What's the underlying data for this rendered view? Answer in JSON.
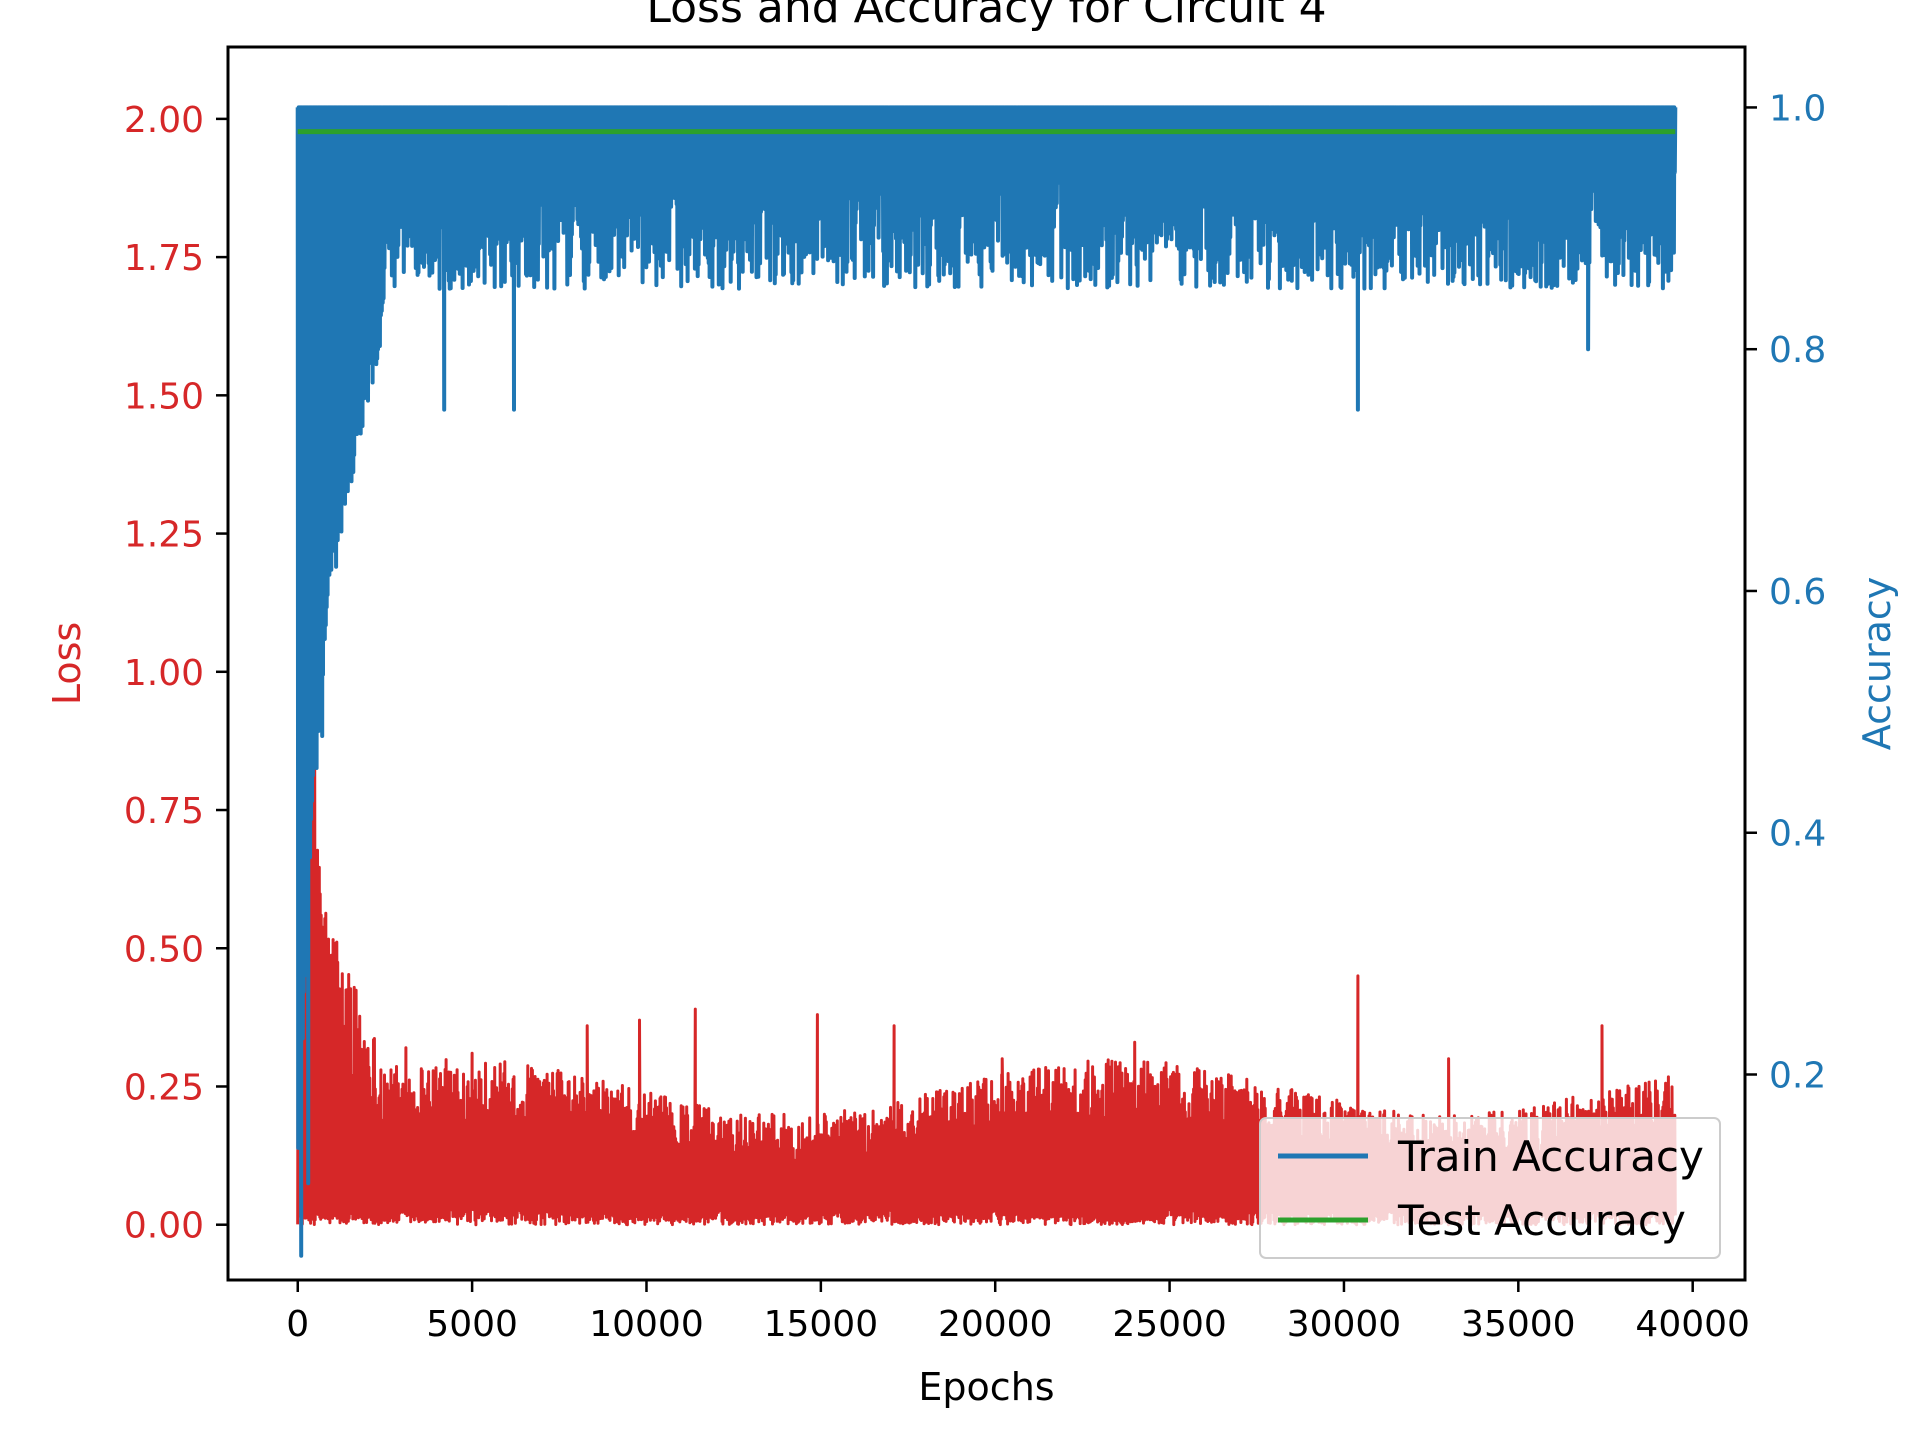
{
  "chart_data": {
    "type": "line",
    "title": "Loss and Accuracy for Circuit 4",
    "xlabel": "Epochs",
    "ylabel_left": "Loss",
    "ylabel_right": "Accuracy",
    "xlim": [
      -2000,
      41500
    ],
    "ylim_left": [
      -0.1,
      2.13
    ],
    "ylim_right": [
      0.03,
      1.05
    ],
    "x_ticks": [
      0,
      5000,
      10000,
      15000,
      20000,
      25000,
      30000,
      35000,
      40000
    ],
    "x_tick_labels": [
      "0",
      "5000",
      "10000",
      "15000",
      "20000",
      "25000",
      "30000",
      "35000",
      "40000"
    ],
    "y_left_ticks": [
      0.0,
      0.25,
      0.5,
      0.75,
      1.0,
      1.25,
      1.5,
      1.75,
      2.0
    ],
    "y_left_tick_labels": [
      "0.00",
      "0.25",
      "0.50",
      "0.75",
      "1.00",
      "1.25",
      "1.50",
      "1.75",
      "2.00"
    ],
    "y_right_ticks": [
      0.2,
      0.4,
      0.6,
      0.8,
      1.0
    ],
    "y_right_tick_labels": [
      "0.2",
      "0.4",
      "0.6",
      "0.8",
      "1.0"
    ],
    "legend": {
      "placement": "lower-right",
      "entries": [
        "Train Accuracy",
        "Test Accuracy"
      ]
    },
    "series": [
      {
        "name": "Loss",
        "axis": "left",
        "color": "#d62728",
        "x_start": 0,
        "x_end": 39500,
        "description_points": [
          [
            0,
            1.0
          ],
          [
            50,
            2.03
          ],
          [
            150,
            1.9
          ],
          [
            300,
            1.3
          ],
          [
            500,
            0.6
          ],
          [
            800,
            0.5
          ],
          [
            1000,
            0.4
          ],
          [
            2000,
            0.3
          ],
          [
            5000,
            0.25
          ],
          [
            40000,
            0.2
          ]
        ],
        "noise_floor": 0.0,
        "envelope_early": 0.38,
        "envelope_late": 0.25,
        "spikes": [
          [
            1500,
            0.38
          ],
          [
            3100,
            0.32
          ],
          [
            5000,
            0.31
          ],
          [
            8300,
            0.36
          ],
          [
            9800,
            0.37
          ],
          [
            11400,
            0.39
          ],
          [
            14900,
            0.38
          ],
          [
            17100,
            0.36
          ],
          [
            20200,
            0.3
          ],
          [
            24000,
            0.33
          ],
          [
            30400,
            0.45
          ],
          [
            33000,
            0.3
          ],
          [
            37400,
            0.36
          ]
        ]
      },
      {
        "name": "Train Accuracy",
        "axis": "right",
        "color": "#1f77b4",
        "x_start": 0,
        "x_end": 39500,
        "ceiling": 1.0,
        "band_low_late": 0.9,
        "band_low_mid": 0.85,
        "dips": [
          [
            100,
            0.05
          ],
          [
            300,
            0.11
          ],
          [
            700,
            0.48
          ],
          [
            1100,
            0.62
          ],
          [
            1500,
            0.7
          ],
          [
            2300,
            0.8
          ],
          [
            4200,
            0.75
          ],
          [
            6200,
            0.75
          ],
          [
            30400,
            0.75
          ],
          [
            37000,
            0.8
          ]
        ]
      },
      {
        "name": "Test Accuracy",
        "axis": "right",
        "color": "#2ca02c",
        "x": [
          0,
          39500
        ],
        "values": [
          0.98,
          0.98
        ]
      }
    ]
  },
  "colors": {
    "loss": "#d62728",
    "train": "#1f77b4",
    "test": "#2ca02c",
    "axis": "#000000"
  }
}
